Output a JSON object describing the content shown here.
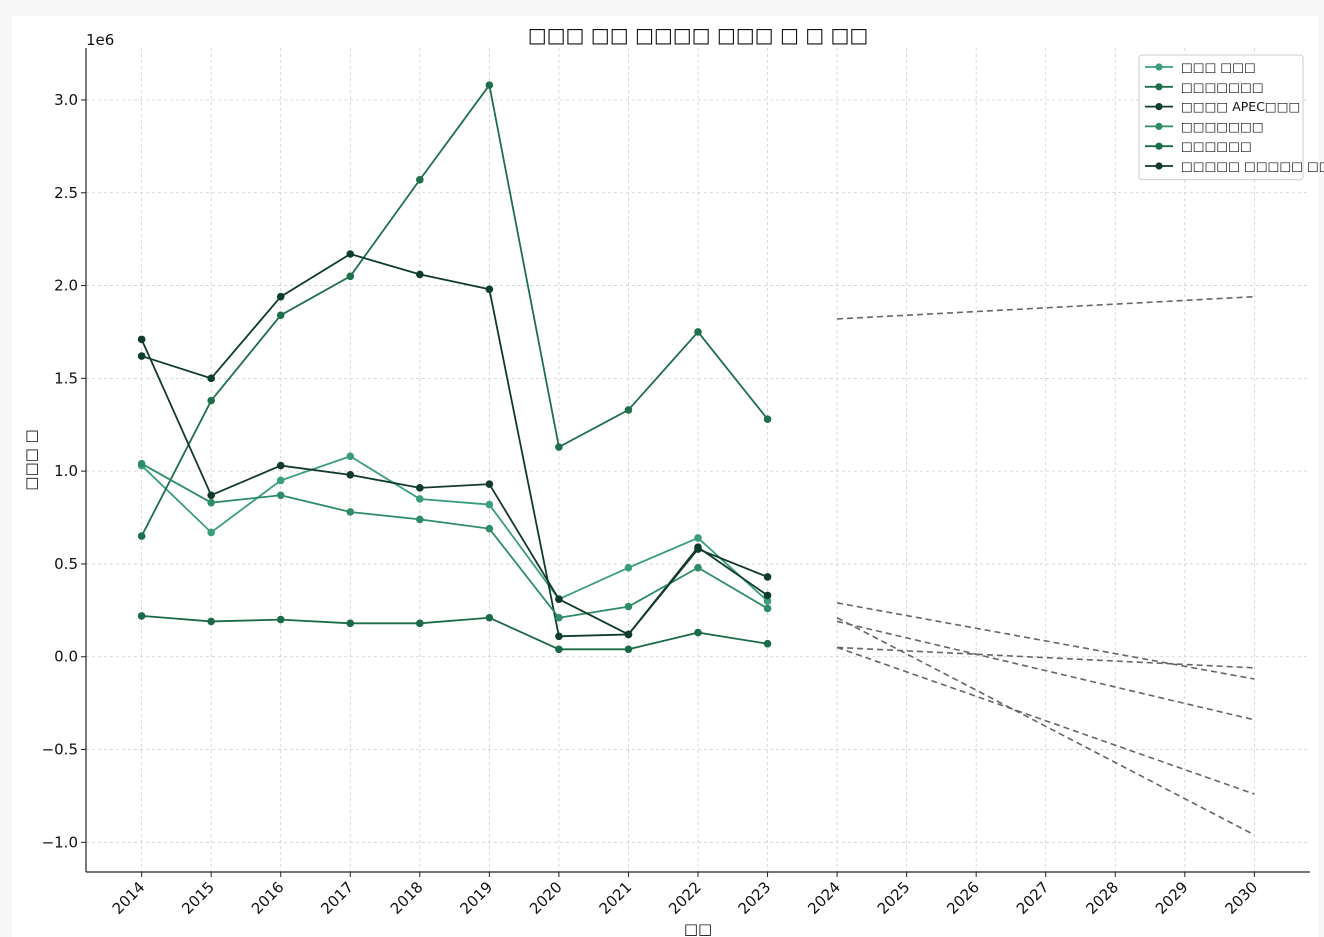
{
  "chart_data": {
    "type": "line",
    "title": "□□□ □□ □□□□ □□□ □ □ □□",
    "xlabel": "□□",
    "ylabel": "□□□ □",
    "y_offset_text": "1e6",
    "x_ticks": [
      2014,
      2015,
      2016,
      2017,
      2018,
      2019,
      2020,
      2021,
      2022,
      2023,
      2024,
      2025,
      2026,
      2027,
      2028,
      2029,
      2030
    ],
    "y_ticks": [
      -1.0,
      -0.5,
      0.0,
      0.5,
      1.0,
      1.5,
      2.0,
      2.5,
      3.0
    ],
    "y_tick_labels": [
      "−1.0",
      "−0.5",
      "0.0",
      "0.5",
      "1.0",
      "1.5",
      "2.0",
      "2.5",
      "3.0"
    ],
    "y_unit_multiplier": 1000000,
    "xlim": [
      2013.2,
      2030.8
    ],
    "ylim": [
      -1.16,
      3.28
    ],
    "grid": true,
    "legend_position": "top-right",
    "x": [
      2014,
      2015,
      2016,
      2017,
      2018,
      2019,
      2020,
      2021,
      2022,
      2023
    ],
    "series": [
      {
        "name": "□□□ □□□",
        "color": "#3a9e7a",
        "values": [
          1.03,
          0.67,
          0.95,
          1.08,
          0.85,
          0.82,
          0.31,
          0.48,
          0.64,
          0.3
        ]
      },
      {
        "name": "□□□□□□□",
        "color": "#1f6e4c",
        "values": [
          0.65,
          1.38,
          1.84,
          2.05,
          2.57,
          3.08,
          1.13,
          1.33,
          1.75,
          1.28
        ]
      },
      {
        "name": "□□□□ APEC□□□",
        "color": "#0f3d2b",
        "values": [
          1.62,
          1.5,
          1.94,
          2.17,
          2.06,
          1.98,
          0.11,
          0.12,
          0.59,
          0.33
        ]
      },
      {
        "name": "□□□□□□□",
        "color": "#2e8c66",
        "values": [
          1.04,
          0.83,
          0.87,
          0.78,
          0.74,
          0.69,
          0.21,
          0.27,
          0.48,
          0.26
        ]
      },
      {
        "name": "□□□□□□",
        "color": "#1b6b48",
        "values": [
          0.22,
          0.19,
          0.2,
          0.18,
          0.18,
          0.21,
          0.04,
          0.04,
          0.13,
          0.07
        ]
      },
      {
        "name": "□□□□□ □□□□□ □□□□",
        "color": "#123a2a",
        "values": [
          1.71,
          0.87,
          1.03,
          0.98,
          0.91,
          0.93,
          0.31,
          0.12,
          0.58,
          0.43
        ]
      }
    ],
    "forecast": {
      "style": "dashed",
      "color": "#666666",
      "x_range": [
        2024,
        2030
      ],
      "lines": [
        {
          "y_start": 1.82,
          "y_end": 1.94
        },
        {
          "y_start": 0.29,
          "y_end": -0.12
        },
        {
          "y_start": 0.19,
          "y_end": -0.34
        },
        {
          "y_start": 0.05,
          "y_end": -0.06
        },
        {
          "y_start": 0.05,
          "y_end": -0.74
        },
        {
          "y_start": 0.21,
          "y_end": -0.96
        }
      ]
    }
  }
}
